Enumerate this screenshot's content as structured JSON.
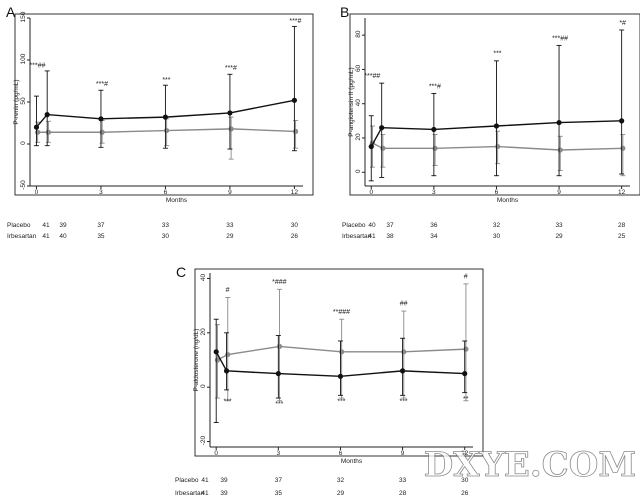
{
  "figure": {
    "watermark": "DXYE.COM",
    "x_tick_labels": [
      "0",
      "3",
      "6",
      "9",
      "12"
    ]
  },
  "colors": {
    "irbesartan": "#111111",
    "placebo": "#8a8a8a",
    "axis": "#222222"
  },
  "chart_data": [
    {
      "panel": "A",
      "type": "line",
      "xlabel": "Months",
      "ylabel": "P-renin (pg/mL)",
      "x": [
        0,
        0.5,
        3,
        6,
        9,
        12
      ],
      "ylim": [
        -50,
        150
      ],
      "yticks": [
        "-50",
        "0",
        "50",
        "100",
        "150"
      ],
      "grid": false,
      "series": [
        {
          "name": "Placebo",
          "values": [
            14,
            14,
            14,
            16,
            18,
            15
          ],
          "err_upper": [
            26,
            27,
            28,
            30,
            32,
            28
          ],
          "err_lower": [
            2,
            2,
            1,
            -2,
            -18,
            -5
          ]
        },
        {
          "name": "Irbesartan",
          "values": [
            20,
            35,
            30,
            32,
            37,
            52
          ],
          "err_upper": [
            57,
            87,
            64,
            70,
            83,
            140
          ],
          "err_lower": [
            -2,
            -2,
            -4,
            -5,
            -6,
            -8
          ]
        }
      ],
      "annotations": [
        {
          "x": 0,
          "y": 91,
          "text": "***##"
        },
        {
          "x": 3,
          "y": 69,
          "text": "***#"
        },
        {
          "x": 6,
          "y": 74,
          "text": "***"
        },
        {
          "x": 9,
          "y": 88,
          "text": "***#"
        },
        {
          "x": 12,
          "y": 144,
          "text": "***#"
        }
      ],
      "counts": [
        {
          "label": "Placebo",
          "values": [
            "41",
            "39",
            "37",
            "33",
            "33",
            "30"
          ]
        },
        {
          "label": "Irbesartan",
          "values": [
            "41",
            "40",
            "35",
            "30",
            "29",
            "26"
          ]
        }
      ]
    },
    {
      "panel": "B",
      "type": "line",
      "xlabel": "Months",
      "ylabel": "P-angiotensin II (pg/mL)",
      "x": [
        0,
        0.5,
        3,
        6,
        9,
        12
      ],
      "ylim": [
        -8,
        90
      ],
      "yticks": [
        "0",
        "20",
        "40",
        "60",
        "80"
      ],
      "grid": false,
      "series": [
        {
          "name": "Placebo",
          "values": [
            17,
            14,
            14,
            15,
            13,
            14
          ],
          "err_upper": [
            27,
            22,
            22,
            24,
            21,
            22
          ],
          "err_lower": [
            3,
            3,
            4,
            5,
            1,
            -2
          ]
        },
        {
          "name": "Irbesartan",
          "values": [
            15,
            26,
            25,
            27,
            29,
            30
          ],
          "err_upper": [
            33,
            52,
            46,
            65,
            74,
            83
          ],
          "err_lower": [
            -5,
            -3,
            -2,
            -2,
            -2,
            -1
          ]
        }
      ],
      "annotations": [
        {
          "x": 0,
          "y": 55,
          "text": "***##"
        },
        {
          "x": 3,
          "y": 49,
          "text": "***#"
        },
        {
          "x": 6,
          "y": 68,
          "text": "***"
        },
        {
          "x": 9,
          "y": 77,
          "text": "***##"
        },
        {
          "x": 12,
          "y": 86,
          "text": "*#"
        }
      ],
      "counts": [
        {
          "label": "Placebo",
          "values": [
            "40",
            "37",
            "36",
            "32",
            "33",
            "28"
          ]
        },
        {
          "label": "Irbesartan",
          "values": [
            "41",
            "38",
            "34",
            "30",
            "29",
            "25"
          ]
        }
      ]
    },
    {
      "panel": "C",
      "type": "line",
      "xlabel": "Months",
      "ylabel": "P-aldosterone (ng/dL)",
      "x": [
        0,
        0.5,
        3,
        6,
        9,
        12
      ],
      "ylim": [
        -22,
        42
      ],
      "yticks": [
        "-20",
        "0",
        "20",
        "40"
      ],
      "grid": false,
      "series": [
        {
          "name": "Placebo",
          "values": [
            10,
            12,
            15,
            13,
            13,
            14
          ],
          "err_upper": [
            23,
            33,
            36,
            25,
            28,
            38
          ],
          "err_lower": [
            -4,
            -5,
            -5,
            -4,
            -4,
            -5
          ]
        },
        {
          "name": "Irbesartan",
          "values": [
            13,
            6,
            5,
            4,
            6,
            5
          ],
          "err_upper": [
            25,
            20,
            19,
            17,
            18,
            17
          ],
          "err_lower": [
            -13,
            -1,
            -4,
            -3,
            -3,
            -2
          ]
        }
      ],
      "annotations": [
        {
          "x": 0.5,
          "y": 35,
          "text": "#"
        },
        {
          "x": 3,
          "y": 38,
          "text": "*###"
        },
        {
          "x": 6,
          "y": 27,
          "text": "**###"
        },
        {
          "x": 9,
          "y": 30,
          "text": "##"
        },
        {
          "x": 12,
          "y": 40,
          "text": "#"
        },
        {
          "x": 0.5,
          "y": -6,
          "text": "***"
        },
        {
          "x": 3,
          "y": -7,
          "text": "***"
        },
        {
          "x": 6,
          "y": -6,
          "text": "***"
        },
        {
          "x": 9,
          "y": -6,
          "text": "***"
        },
        {
          "x": 12,
          "y": -5,
          "text": "**"
        }
      ],
      "counts": [
        {
          "label": "Placebo",
          "values": [
            "41",
            "39",
            "37",
            "32",
            "33",
            "30"
          ]
        },
        {
          "label": "Irbesartan",
          "values": [
            "41",
            "39",
            "35",
            "29",
            "28",
            "26"
          ]
        }
      ]
    }
  ]
}
